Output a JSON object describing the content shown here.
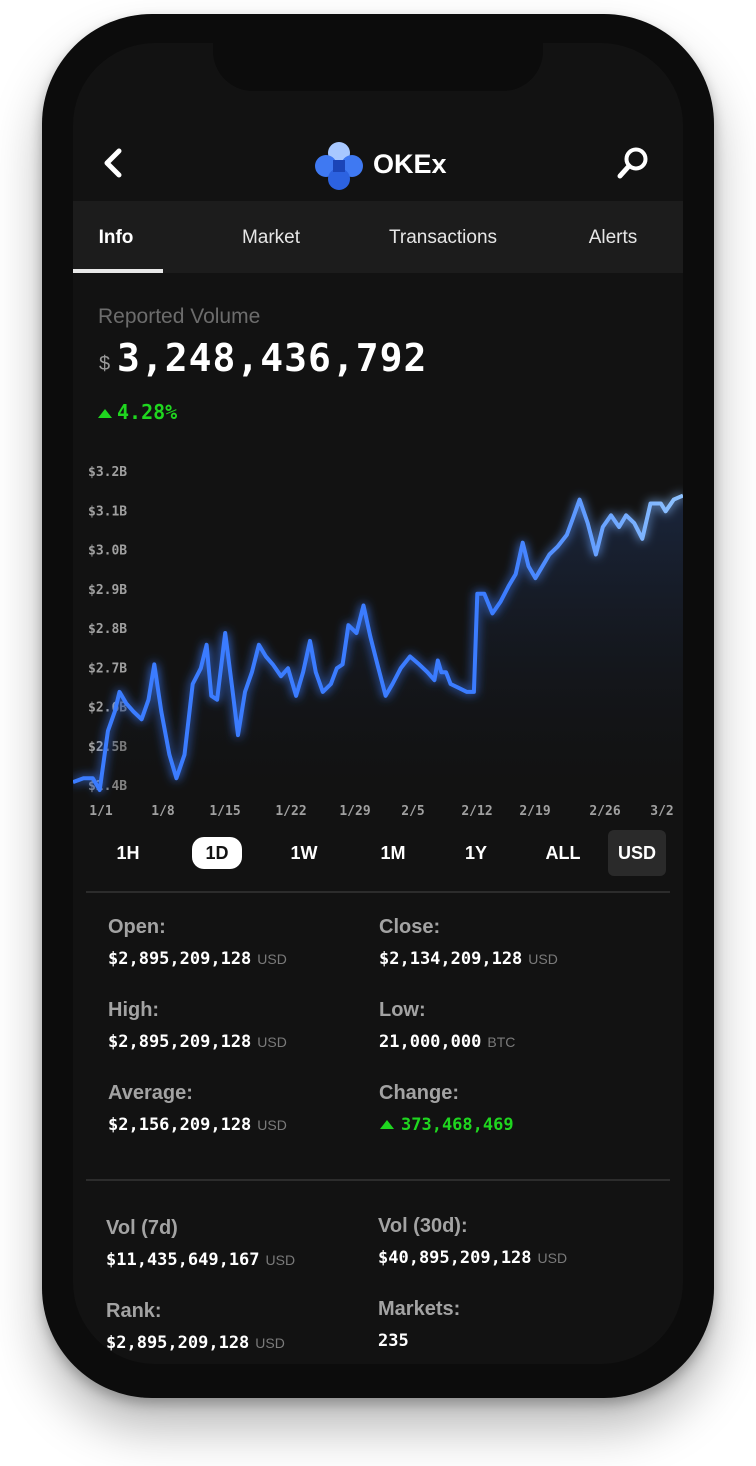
{
  "header": {
    "brand": "OKEx"
  },
  "tabs": [
    {
      "label": "Info"
    },
    {
      "label": "Market"
    },
    {
      "label": "Transactions"
    },
    {
      "label": "Alerts"
    }
  ],
  "reported": {
    "label": "Reported Volume",
    "currency_symbol": "$",
    "value": "3,248,436,792",
    "change": "4.28%"
  },
  "chart_data": {
    "type": "area",
    "y_tick_labels": [
      "$3.2B",
      "$3.1B",
      "$3.0B",
      "$2.9B",
      "$2.8B",
      "$2.7B",
      "$2.6B",
      "$2.5B",
      "$2.4B"
    ],
    "x_tick_labels": [
      "1/1",
      "1/8",
      "1/15",
      "1/22",
      "1/29",
      "2/5",
      "2/12",
      "2/19",
      "2/26",
      "3/2"
    ],
    "ylim": [
      2.4,
      3.2
    ],
    "unit": "B",
    "line_color": "#3a7bff",
    "line_color_end": "#8fc3ff",
    "points": [
      [
        0.0,
        2.42
      ],
      [
        0.9,
        2.43
      ],
      [
        1.7,
        2.43
      ],
      [
        2.3,
        2.4
      ],
      [
        3.0,
        2.55
      ],
      [
        3.6,
        2.6
      ],
      [
        4.0,
        2.65
      ],
      [
        4.6,
        2.62
      ],
      [
        5.2,
        2.6
      ],
      [
        5.9,
        2.58
      ],
      [
        6.5,
        2.63
      ],
      [
        7.0,
        2.72
      ],
      [
        7.6,
        2.6
      ],
      [
        8.3,
        2.49
      ],
      [
        8.9,
        2.43
      ],
      [
        9.6,
        2.49
      ],
      [
        10.3,
        2.67
      ],
      [
        11.0,
        2.71
      ],
      [
        11.5,
        2.77
      ],
      [
        11.9,
        2.64
      ],
      [
        12.4,
        2.63
      ],
      [
        13.1,
        2.8
      ],
      [
        13.7,
        2.66
      ],
      [
        14.2,
        2.54
      ],
      [
        14.8,
        2.65
      ],
      [
        15.4,
        2.7
      ],
      [
        16.0,
        2.77
      ],
      [
        16.6,
        2.74
      ],
      [
        17.2,
        2.72
      ],
      [
        17.9,
        2.69
      ],
      [
        18.5,
        2.71
      ],
      [
        19.2,
        2.64
      ],
      [
        19.8,
        2.7
      ],
      [
        20.4,
        2.78
      ],
      [
        20.9,
        2.7
      ],
      [
        21.5,
        2.65
      ],
      [
        22.2,
        2.67
      ],
      [
        22.7,
        2.71
      ],
      [
        23.2,
        2.72
      ],
      [
        23.7,
        2.82
      ],
      [
        24.4,
        2.8
      ],
      [
        25.0,
        2.87
      ],
      [
        25.6,
        2.79
      ],
      [
        26.2,
        2.72
      ],
      [
        26.9,
        2.64
      ],
      [
        27.5,
        2.67
      ],
      [
        28.2,
        2.71
      ],
      [
        29.0,
        2.74
      ],
      [
        29.8,
        2.72
      ],
      [
        30.5,
        2.7
      ],
      [
        31.1,
        2.68
      ],
      [
        31.4,
        2.73
      ],
      [
        31.7,
        2.7
      ],
      [
        32.1,
        2.7
      ],
      [
        32.5,
        2.67
      ],
      [
        33.2,
        2.66
      ],
      [
        33.9,
        2.65
      ],
      [
        34.5,
        2.65
      ],
      [
        34.8,
        2.9
      ],
      [
        35.4,
        2.9
      ],
      [
        36.1,
        2.85
      ],
      [
        36.8,
        2.88
      ],
      [
        37.5,
        2.92
      ],
      [
        38.1,
        2.95
      ],
      [
        38.7,
        3.03
      ],
      [
        39.2,
        2.97
      ],
      [
        39.8,
        2.94
      ],
      [
        40.4,
        2.97
      ],
      [
        41.0,
        3.0
      ],
      [
        41.7,
        3.02
      ],
      [
        42.5,
        3.05
      ],
      [
        43.0,
        3.09
      ],
      [
        43.6,
        3.14
      ],
      [
        44.3,
        3.08
      ],
      [
        45.0,
        3.0
      ],
      [
        45.6,
        3.07
      ],
      [
        46.3,
        3.1
      ],
      [
        47.0,
        3.07
      ],
      [
        47.6,
        3.1
      ],
      [
        48.3,
        3.08
      ],
      [
        49.0,
        3.04
      ],
      [
        49.7,
        3.13
      ],
      [
        50.6,
        3.13
      ],
      [
        51.0,
        3.11
      ],
      [
        51.7,
        3.14
      ],
      [
        52.5,
        3.15
      ]
    ]
  },
  "periods": [
    "1H",
    "1D",
    "1W",
    "1M",
    "1Y",
    "ALL"
  ],
  "currency": "USD",
  "stats": {
    "open": {
      "label": "Open:",
      "value": "$2,895,209,128",
      "unit": "USD"
    },
    "close": {
      "label": "Close:",
      "value": "$2,134,209,128",
      "unit": "USD"
    },
    "high": {
      "label": "High:",
      "value": "$2,895,209,128",
      "unit": "USD"
    },
    "low": {
      "label": "Low:",
      "value": "21,000,000",
      "unit": "BTC"
    },
    "average": {
      "label": "Average:",
      "value": "$2,156,209,128",
      "unit": "USD"
    },
    "change": {
      "label": "Change:",
      "value": "373,468,469"
    }
  },
  "volume": {
    "vol7": {
      "label": "Vol (7d)",
      "value": "$11,435,649,167",
      "unit": "USD"
    },
    "vol30": {
      "label": "Vol (30d):",
      "value": "$40,895,209,128",
      "unit": "USD"
    },
    "rank": {
      "label": "Rank:",
      "value": "$2,895,209,128",
      "unit": "USD"
    },
    "markets": {
      "label": "Markets:",
      "value": "235"
    }
  }
}
